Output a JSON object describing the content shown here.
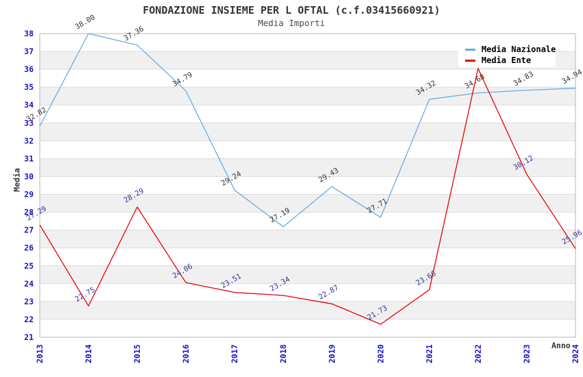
{
  "header": {
    "title": "FONDAZIONE INSIEME PER L OFTAL (c.f.03415660921)",
    "subtitle": "Media Importi"
  },
  "legend": {
    "items": [
      {
        "label": "Media Nazionale",
        "color": "#6aaae6"
      },
      {
        "label": "Media Ente",
        "color": "#e60000"
      }
    ]
  },
  "axes": {
    "y_label": "Media",
    "x_label": "Anno",
    "tick_color": "#1414cc",
    "y_ticks": [
      21,
      22,
      23,
      24,
      25,
      26,
      27,
      28,
      29,
      30,
      31,
      32,
      33,
      34,
      35,
      36,
      37,
      38
    ],
    "x_ticks": [
      2013,
      2014,
      2015,
      2016,
      2017,
      2018,
      2019,
      2020,
      2021,
      2022,
      2023,
      2024
    ]
  },
  "chart_data": {
    "type": "line",
    "title": "FONDAZIONE INSIEME PER L OFTAL (c.f.03415660921)",
    "subtitle": "Media Importi",
    "xlabel": "Anno",
    "ylabel": "Media",
    "ylim": [
      21,
      38
    ],
    "grid": true,
    "legend_position": "top-right",
    "band_colors": [
      "#ffffff",
      "#f0f0f0"
    ],
    "gridline_color": "#dcdcdc",
    "border_color": "#b6b6b6",
    "categories": [
      2013,
      2014,
      2015,
      2016,
      2017,
      2018,
      2019,
      2020,
      2021,
      2022,
      2023,
      2024
    ],
    "series": [
      {
        "name": "Media Nazionale",
        "color": "#6aaae6",
        "label_color": "#333333",
        "values": [
          32.82,
          38.0,
          37.36,
          34.79,
          29.24,
          27.19,
          29.43,
          27.71,
          34.32,
          34.68,
          34.83,
          34.94
        ],
        "labels": [
          "32.82",
          "38.00",
          "37.36",
          "34.79",
          "29.24",
          "27.19",
          "29.43",
          "27.71",
          "34.32",
          "34.68",
          "34.83",
          "34.94"
        ]
      },
      {
        "name": "Media Ente",
        "color": "#e60000",
        "label_color": "#333399",
        "values": [
          27.29,
          22.75,
          28.29,
          24.06,
          23.51,
          23.34,
          22.87,
          21.73,
          23.66,
          36.05,
          30.12,
          25.96
        ],
        "labels": [
          "27.29",
          "22.75",
          "28.29",
          "24.06",
          "23.51",
          "23.34",
          "22.87",
          "21.73",
          "23.66",
          null,
          "30.12",
          "25.96"
        ]
      }
    ]
  }
}
